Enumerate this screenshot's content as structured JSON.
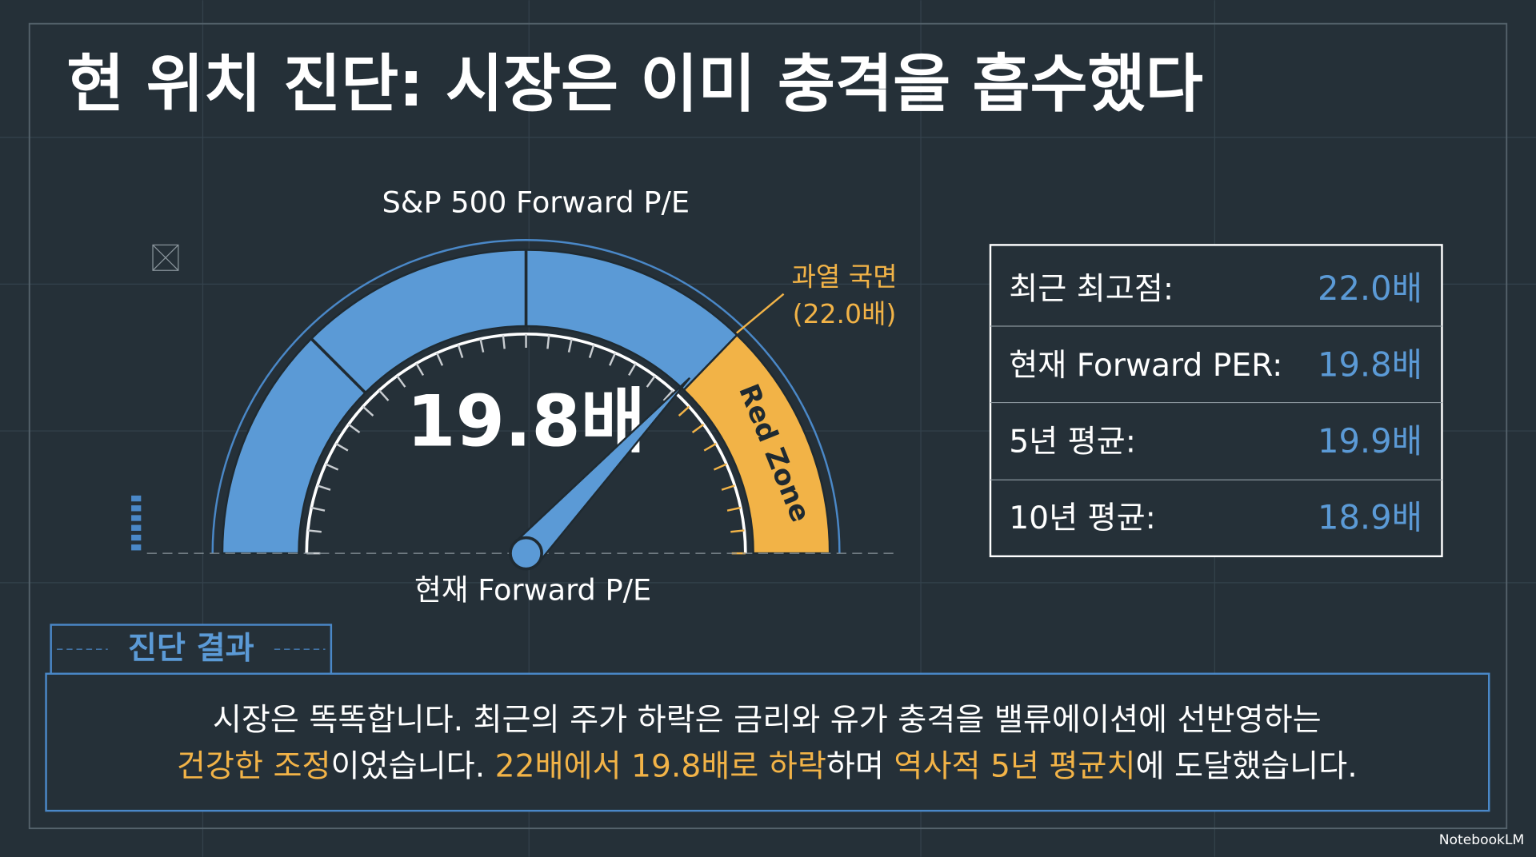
{
  "title": "현 위치 진단: 시장은 이미 충격을 흡수했다",
  "gauge": {
    "title": "S&P 500 Forward P/E",
    "value_label": "19.8배",
    "needle_label": "현재 Forward P/E",
    "zone_label": "Red Zone",
    "threshold_label": [
      "과열 국면",
      "(22.0배)"
    ]
  },
  "stats": {
    "rows": [
      [
        "최근 최고점:",
        "22.0배"
      ],
      [
        "현재 Forward PER:",
        "19.8배"
      ],
      [
        "5년 평균:",
        "19.9배"
      ],
      [
        "10년 평균:",
        "18.9배"
      ]
    ]
  },
  "diagnosis": {
    "heading": "진단 결과",
    "lines": [
      [
        {
          "text": "시장은 똑똑합니다. 최근의 주가 하락은 금리와 유가 충격을 밸류에이션에 선반영하는",
          "color": "#ffffff"
        }
      ],
      [
        {
          "text": "건강한 조정",
          "color": "#f2b347"
        },
        {
          "text": "이었습니다. ",
          "color": "#ffffff"
        },
        {
          "text": "22배에서 19.8배로 하락",
          "color": "#f2b347"
        },
        {
          "text": "하며 ",
          "color": "#ffffff"
        },
        {
          "text": "역사적 5년 평균치",
          "color": "#f2b347"
        },
        {
          "text": "에 도달했습니다.",
          "color": "#ffffff"
        }
      ]
    ]
  },
  "watermark": "NotebookLM"
}
